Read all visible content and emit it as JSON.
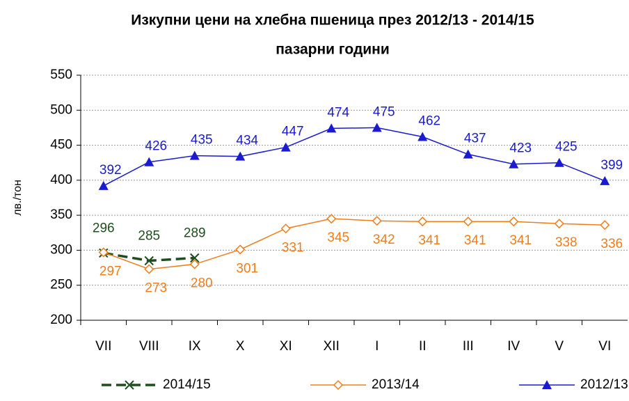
{
  "chart_data": {
    "type": "line",
    "title": [
      "Изкупни цени на хлебна пшеница през 2012/13 - 2014/15",
      "пазарни години"
    ],
    "y_label": "лв./тон",
    "categories": [
      "VII",
      "VIII",
      "IX",
      "X",
      "XI",
      "XII",
      "I",
      "II",
      "III",
      "IV",
      "V",
      "VI"
    ],
    "series": [
      {
        "name": "2014/15",
        "color": "#1e4d1e",
        "marker": "x",
        "dash": true,
        "label_pos": "above",
        "values": [
          296,
          285,
          289,
          null,
          null,
          null,
          null,
          null,
          null,
          null,
          null,
          null
        ]
      },
      {
        "name": "2013/14",
        "color": "#f07d1a",
        "marker": "diamond",
        "dash": false,
        "label_pos": "below",
        "values": [
          297,
          273,
          280,
          301,
          331,
          345,
          342,
          341,
          341,
          341,
          338,
          336
        ]
      },
      {
        "name": "2012/13",
        "color": "#1a1ad0",
        "marker": "triangle",
        "dash": false,
        "label_pos": "above",
        "values": [
          392,
          426,
          435,
          434,
          447,
          474,
          475,
          462,
          437,
          423,
          425,
          399
        ]
      }
    ],
    "ylim": [
      200,
      550
    ],
    "yticks": [
      200,
      250,
      300,
      350,
      400,
      450,
      500,
      550
    ],
    "grid": true,
    "legend": "bottom"
  }
}
